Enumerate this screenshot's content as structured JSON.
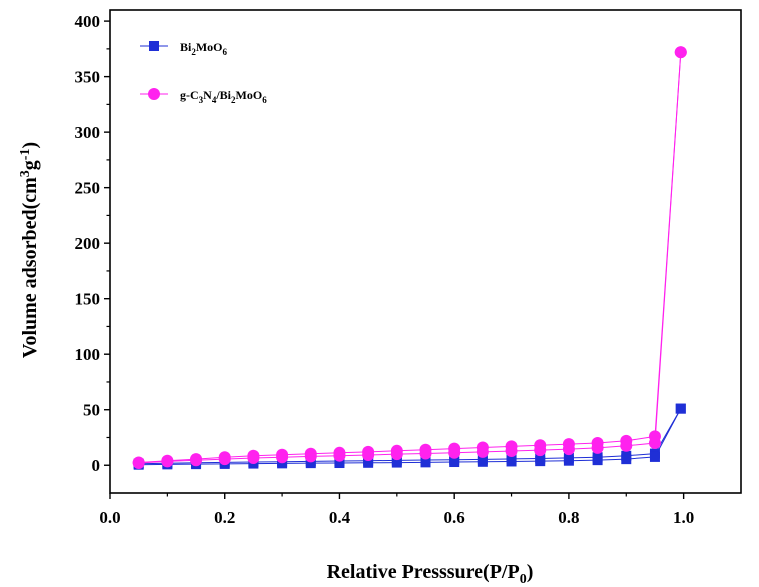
{
  "chart_data": {
    "type": "line",
    "xlabel": "Relative Presssure(P/P0)",
    "ylabel": "Volume adsorbed(cm3g-1)",
    "xlim": [
      0.0,
      1.1
    ],
    "ylim": [
      -25,
      410
    ],
    "xticks": [
      "0.0",
      "0.2",
      "0.4",
      "0.6",
      "0.8",
      "1.0"
    ],
    "yticks": [
      "0",
      "50",
      "100",
      "150",
      "200",
      "250",
      "300",
      "350",
      "400"
    ],
    "x_tick_values": [
      0.0,
      0.2,
      0.4,
      0.6,
      0.8,
      1.0
    ],
    "y_tick_values": [
      0,
      50,
      100,
      150,
      200,
      250,
      300,
      350,
      400
    ],
    "grid": false,
    "legend": "top-left",
    "series": [
      {
        "name": "Bi2MoO6",
        "color": "#1f2fd6",
        "marker": "square",
        "adsorption": {
          "x": [
            0.05,
            0.1,
            0.15,
            0.2,
            0.25,
            0.3,
            0.35,
            0.4,
            0.45,
            0.5,
            0.55,
            0.6,
            0.65,
            0.7,
            0.75,
            0.8,
            0.85,
            0.9,
            0.95,
            0.995
          ],
          "y": [
            0.5,
            0.8,
            1.0,
            1.2,
            1.5,
            1.7,
            1.9,
            2.0,
            2.2,
            2.4,
            2.6,
            2.9,
            3.1,
            3.4,
            3.7,
            4.1,
            4.6,
            5.5,
            7.5,
            51
          ]
        },
        "desorption": {
          "x": [
            0.995,
            0.95,
            0.9,
            0.85,
            0.8,
            0.75,
            0.7,
            0.65,
            0.6,
            0.55,
            0.5,
            0.45,
            0.4,
            0.35,
            0.3,
            0.25,
            0.2,
            0.15,
            0.1,
            0.05
          ],
          "y": [
            51,
            10.5,
            8.5,
            7.2,
            6.6,
            6.1,
            5.7,
            5.3,
            5.0,
            4.7,
            4.4,
            4.1,
            3.8,
            3.5,
            3.2,
            2.9,
            2.6,
            2.2,
            1.8,
            1.4
          ]
        }
      },
      {
        "name": "g-C3N4/Bi2MoO6",
        "color": "#ff22ee",
        "marker": "circle",
        "adsorption": {
          "x": [
            0.05,
            0.1,
            0.15,
            0.2,
            0.25,
            0.3,
            0.35,
            0.4,
            0.45,
            0.5,
            0.55,
            0.6,
            0.65,
            0.7,
            0.75,
            0.8,
            0.85,
            0.9,
            0.95,
            0.995
          ],
          "y": [
            2.0,
            3.5,
            4.5,
            5.5,
            6.5,
            7.2,
            8.0,
            8.6,
            9.2,
            10.0,
            10.6,
            11.2,
            12.0,
            12.8,
            13.6,
            14.5,
            15.6,
            17.5,
            20.0,
            372
          ]
        },
        "desorption": {
          "x": [
            0.995,
            0.95,
            0.9,
            0.85,
            0.8,
            0.75,
            0.7,
            0.65,
            0.6,
            0.55,
            0.5,
            0.45,
            0.4,
            0.35,
            0.3,
            0.25,
            0.2,
            0.15,
            0.1,
            0.05
          ],
          "y": [
            372,
            26.0,
            22.0,
            20.0,
            19.0,
            18.0,
            17.0,
            16.0,
            15.0,
            14.0,
            13.0,
            12.0,
            11.2,
            10.3,
            9.5,
            8.5,
            7.2,
            5.5,
            4.0,
            2.5
          ]
        }
      }
    ]
  },
  "labels": {
    "xlabel_main": "Relative Presssure(P/P",
    "xlabel_sub": "0",
    "xlabel_close": ")",
    "ylabel_main": "Volume adsorbed(cm",
    "ylabel_sup1": "3",
    "ylabel_g": "g",
    "ylabel_sup2": "-1",
    "ylabel_close": ")",
    "legend1": {
      "p1": "Bi",
      "s1": "2",
      "p2": "MoO",
      "s2": "6"
    },
    "legend2": {
      "p1": "g-C",
      "s1": "3",
      "p2": "N",
      "s2": "4",
      "p3": "/Bi",
      "s3": "2",
      "p4": "MoO",
      "s4": "6"
    }
  }
}
